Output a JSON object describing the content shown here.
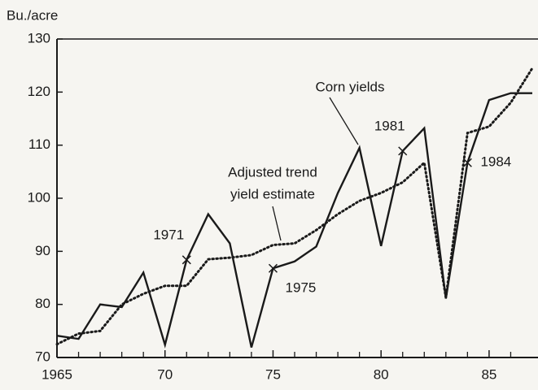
{
  "chart_data": {
    "type": "line",
    "y_label": "Bu./acre",
    "x": [
      1965,
      1966,
      1967,
      1968,
      1969,
      1970,
      1971,
      1972,
      1973,
      1974,
      1975,
      1976,
      1977,
      1978,
      1979,
      1980,
      1981,
      1982,
      1983,
      1984,
      1985,
      1986,
      1987
    ],
    "series": [
      {
        "name": "Corn yields",
        "color": "#1a1a1a",
        "style": "solid",
        "values": [
          74.1,
          73.5,
          80,
          79.5,
          86,
          72.4,
          88.4,
          97,
          91.5,
          71.9,
          86.8,
          88.1,
          90.9,
          101,
          109.5,
          91,
          108.9,
          113.2,
          81.1,
          106.7,
          118.5,
          119.8,
          119.8
        ]
      },
      {
        "name": "Adjusted trend yield estimate",
        "color": "#1a1a1a",
        "style": "dotted",
        "values": [
          72.5,
          74.5,
          75,
          80,
          82,
          83.5,
          83.5,
          88.5,
          88.8,
          89.3,
          91.2,
          91.5,
          94,
          97,
          99.5,
          101,
          103,
          106.7,
          81.3,
          112.3,
          113.5,
          118,
          124.5
        ]
      }
    ],
    "series_labels": [
      "Corn yields",
      "Adjusted trend",
      "yield estimate"
    ],
    "point_labels": [
      "1971",
      "1975",
      "1981",
      "1984"
    ],
    "xlim": [
      1965,
      1987
    ],
    "xticks": [
      {
        "value": 1965,
        "label": "1965"
      },
      {
        "value": 1970,
        "label": "70"
      },
      {
        "value": 1975,
        "label": "75"
      },
      {
        "value": 1980,
        "label": "80"
      },
      {
        "value": 1985,
        "label": "85"
      }
    ],
    "xticks_minor": [
      1966,
      1967,
      1968,
      1969,
      1971,
      1972,
      1973,
      1974,
      1976,
      1977,
      1978,
      1979,
      1981,
      1982,
      1983,
      1984,
      1986
    ],
    "ylim": [
      70,
      130
    ],
    "yticks": [
      70,
      80,
      90,
      100,
      110,
      120,
      130
    ]
  }
}
